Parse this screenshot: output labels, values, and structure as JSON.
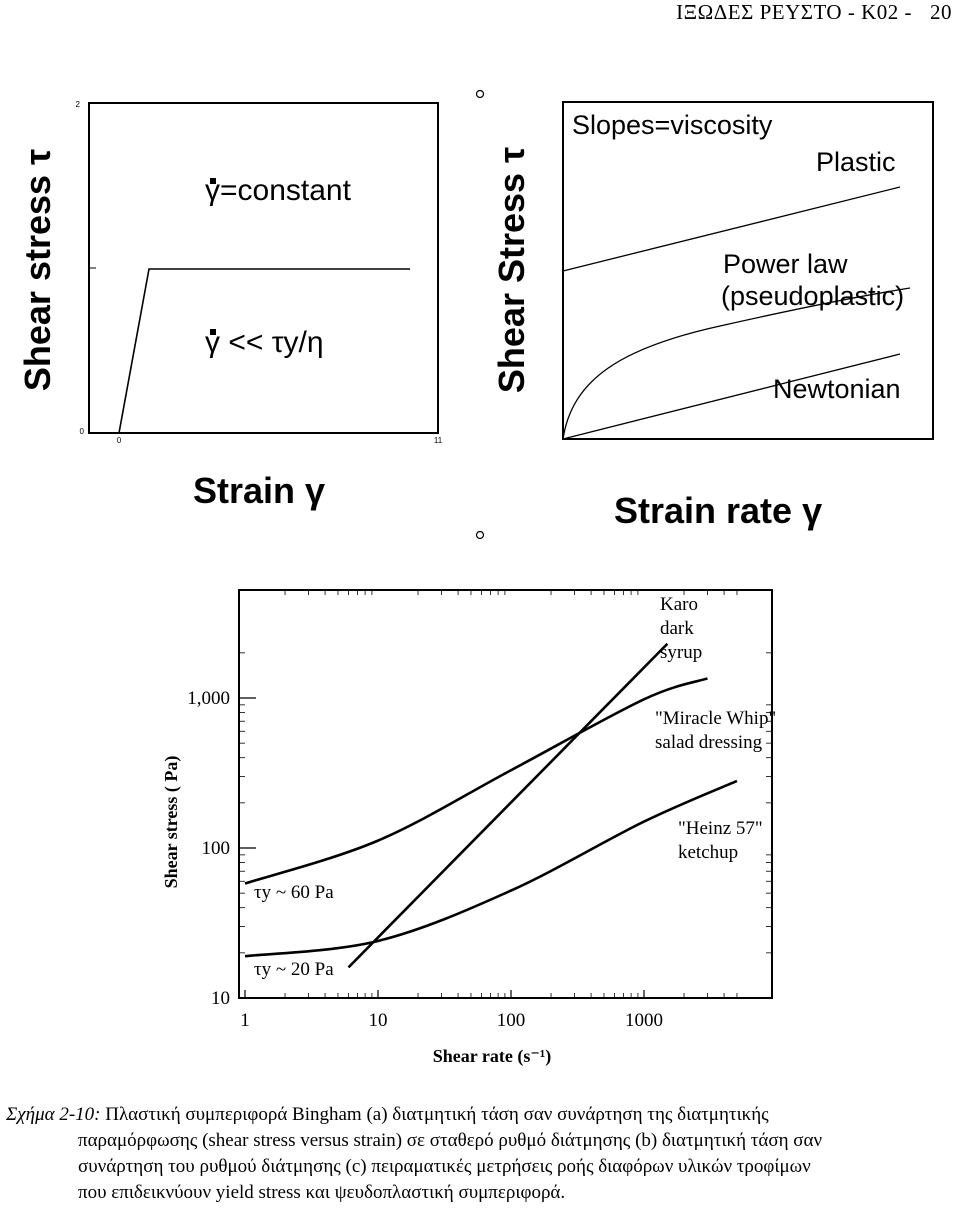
{
  "header": {
    "title": "ΙΞΩΔΕΣ ΡΕΥΣΤΟ - Κ02 -",
    "page": "20"
  },
  "figure_a": {
    "ylabel": "Shear stress τ",
    "xlabel": "Strain γ",
    "label_top": "γ=constant",
    "label_bottom": "γ << τy/η",
    "ticks": {
      "y_top": "2",
      "y_bottom": "0",
      "x_left": "0",
      "x_right": "11"
    }
  },
  "figure_b": {
    "ylabel": "Shear Stress τ",
    "xlabel": "Strain rate γ",
    "title": "Slopes=viscosity",
    "curves": [
      "Plastic",
      "Power law",
      "(pseudoplastic)",
      "Newtonian"
    ]
  },
  "chart_data": {
    "type": "line",
    "xlabel": "Shear rate (s⁻¹)",
    "ylabel": "Shear stress ( Pa)",
    "xscale": "log",
    "yscale": "log",
    "xlim": [
      1,
      6000
    ],
    "ylim": [
      10,
      2700
    ],
    "x_ticks": [
      "1",
      "10",
      "100",
      "1000"
    ],
    "y_ticks": [
      "10",
      "100",
      "1,000"
    ],
    "series": [
      {
        "name": "Karo dark syrup",
        "label_lines": [
          "Karo",
          "dark",
          "syrup"
        ],
        "x": [
          6,
          1500
        ],
        "y": [
          16,
          2300
        ]
      },
      {
        "name": "\"Miracle Whip\" salad dressing",
        "label_lines": [
          "\"Miracle Whip\"",
          "salad dressing"
        ],
        "x": [
          1,
          10,
          100,
          1000,
          3000
        ],
        "y": [
          58,
          112,
          330,
          980,
          1350
        ]
      },
      {
        "name": "\"Heinz 57\" ketchup",
        "label_lines": [
          "\"Heinz 57\"",
          "ketchup"
        ],
        "x": [
          1,
          10,
          100,
          1000,
          5000
        ],
        "y": [
          19,
          24,
          52,
          150,
          280
        ]
      }
    ],
    "annotations": [
      {
        "text": "τy ~ 60 Pa",
        "x": 1,
        "y": 58
      },
      {
        "text": "τy ~ 20 Pa",
        "x": 1,
        "y": 19
      }
    ],
    "grid": false
  },
  "caption": {
    "label": "Σχήμα 2-10:",
    "line1": "Πλαστική συμπεριφορά Bingham (a) διατμητική τάση σαν συνάρτηση της διατμητικής",
    "line2": "παραμόρφωσης (shear stress versus strain) σε σταθερό ρυθμό διάτμησης (b) διατμητική τάση σαν",
    "line3": "συνάρτηση του ρυθμού διάτμησης (c) πειραματικές μετρήσεις ροής διαφόρων υλικών τροφίμων",
    "line4": "που επιδεικνύουν yield stress και ψευδοπλαστική συμπεριφορά."
  }
}
